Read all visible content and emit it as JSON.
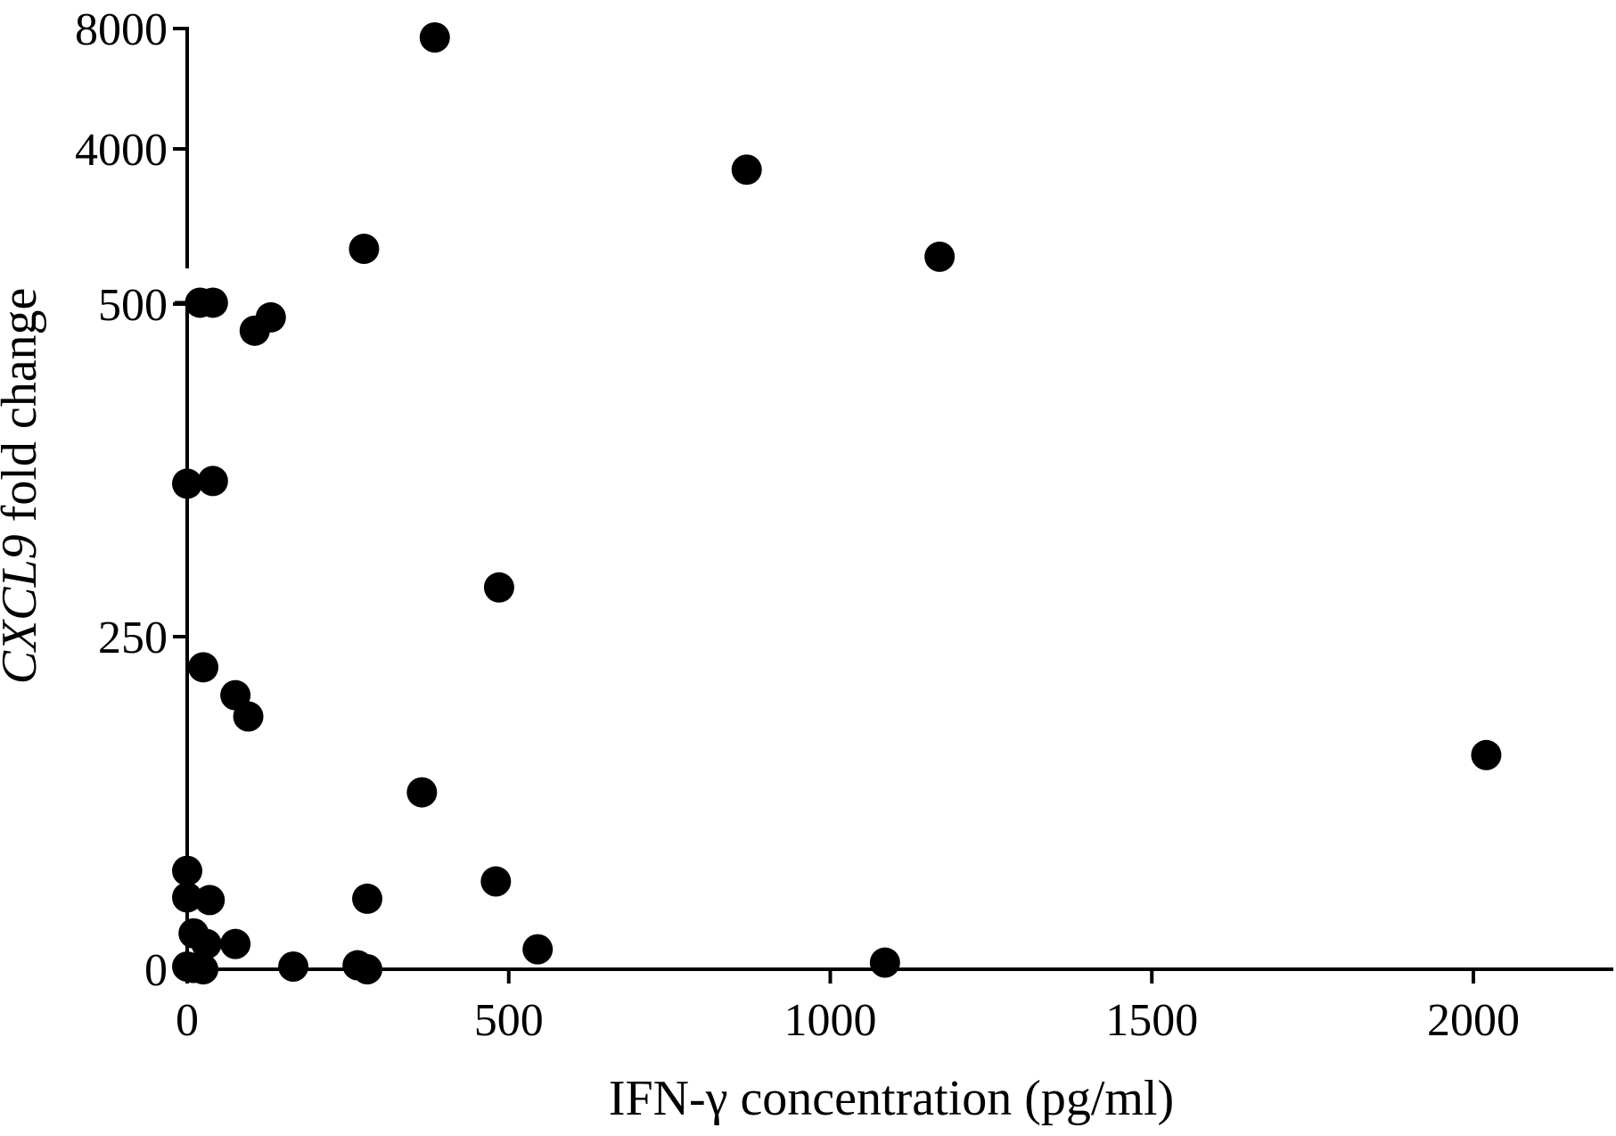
{
  "chart_data": {
    "type": "scatter",
    "title": "",
    "xlabel": "IFN-γ concentration (pg/ml)",
    "ylabel_italic": "CXCL9",
    "ylabel_rest": " fold change",
    "x_ticks": [
      0,
      500,
      1000,
      1500,
      2000
    ],
    "x_tick_labels": [
      "0",
      "500",
      "1000",
      "1500",
      "2000"
    ],
    "xlim": [
      0,
      2200
    ],
    "y_axis": {
      "lower_segment": {
        "range": [
          0,
          500
        ],
        "scale": "linear",
        "ticks": [
          0,
          250,
          500
        ],
        "tick_labels": [
          "0",
          "250",
          "500"
        ]
      },
      "upper_segment": {
        "range": [
          500,
          8000
        ],
        "scale": "log2",
        "ticks": [
          4000,
          8000
        ],
        "tick_labels": [
          "4000",
          "8000"
        ]
      }
    },
    "grid": false,
    "legend": "none",
    "marker_color": "#000000",
    "points": [
      {
        "x": 385,
        "y": 7600
      },
      {
        "x": 870,
        "y": 3550
      },
      {
        "x": 275,
        "y": 2250
      },
      {
        "x": 1170,
        "y": 2150
      },
      {
        "x": 20,
        "y": 1650
      },
      {
        "x": 40,
        "y": 1650
      },
      {
        "x": 130,
        "y": 490
      },
      {
        "x": 105,
        "y": 480
      },
      {
        "x": 0,
        "y": 365
      },
      {
        "x": 40,
        "y": 367
      },
      {
        "x": 485,
        "y": 287
      },
      {
        "x": 25,
        "y": 227
      },
      {
        "x": 75,
        "y": 206
      },
      {
        "x": 95,
        "y": 190
      },
      {
        "x": 2020,
        "y": 161
      },
      {
        "x": 365,
        "y": 133
      },
      {
        "x": 0,
        "y": 74
      },
      {
        "x": 480,
        "y": 66
      },
      {
        "x": 0,
        "y": 54
      },
      {
        "x": 35,
        "y": 52
      },
      {
        "x": 280,
        "y": 53
      },
      {
        "x": 10,
        "y": 27
      },
      {
        "x": 30,
        "y": 19
      },
      {
        "x": 75,
        "y": 19
      },
      {
        "x": 545,
        "y": 15
      },
      {
        "x": 1085,
        "y": 5
      },
      {
        "x": 0,
        "y": 2
      },
      {
        "x": 10,
        "y": 1
      },
      {
        "x": 25,
        "y": 0
      },
      {
        "x": 165,
        "y": 2
      },
      {
        "x": 265,
        "y": 3
      },
      {
        "x": 280,
        "y": 0
      }
    ]
  }
}
